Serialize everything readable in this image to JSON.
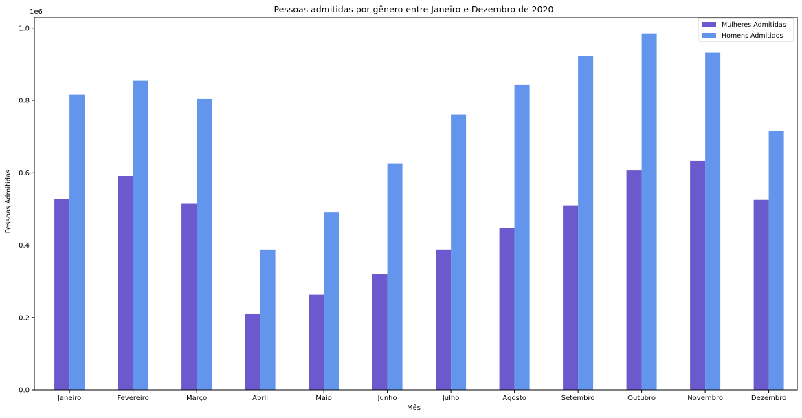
{
  "chart_data": {
    "type": "bar",
    "title": "Pessoas admitidas por gênero entre Janeiro e Dezembro de 2020",
    "xlabel": "Mês",
    "ylabel": "Pessoas Admitidas",
    "scale_label": "1e6",
    "ylim": [
      0,
      1.03
    ],
    "yticks": [
      "0.0",
      "0.2",
      "0.4",
      "0.6",
      "0.8",
      "1.0"
    ],
    "ytick_values": [
      0.0,
      0.2,
      0.4,
      0.6,
      0.8,
      1.0
    ],
    "categories": [
      "Janeiro",
      "Fevereiro",
      "Março",
      "Abril",
      "Maio",
      "Junho",
      "Julho",
      "Agosto",
      "Setembro",
      "Outubro",
      "Novembro",
      "Dezembro"
    ],
    "series": [
      {
        "name": "Mulheres Admitidas",
        "color": "#6a5acd",
        "values": [
          0.527,
          0.591,
          0.514,
          0.211,
          0.263,
          0.32,
          0.388,
          0.447,
          0.51,
          0.606,
          0.633,
          0.525
        ]
      },
      {
        "name": "Homens Admitidos",
        "color": "#6495ed",
        "values": [
          0.816,
          0.854,
          0.804,
          0.388,
          0.49,
          0.626,
          0.761,
          0.844,
          0.922,
          0.985,
          0.932,
          0.716
        ]
      }
    ],
    "legend_position": "top-right",
    "grid": false
  }
}
